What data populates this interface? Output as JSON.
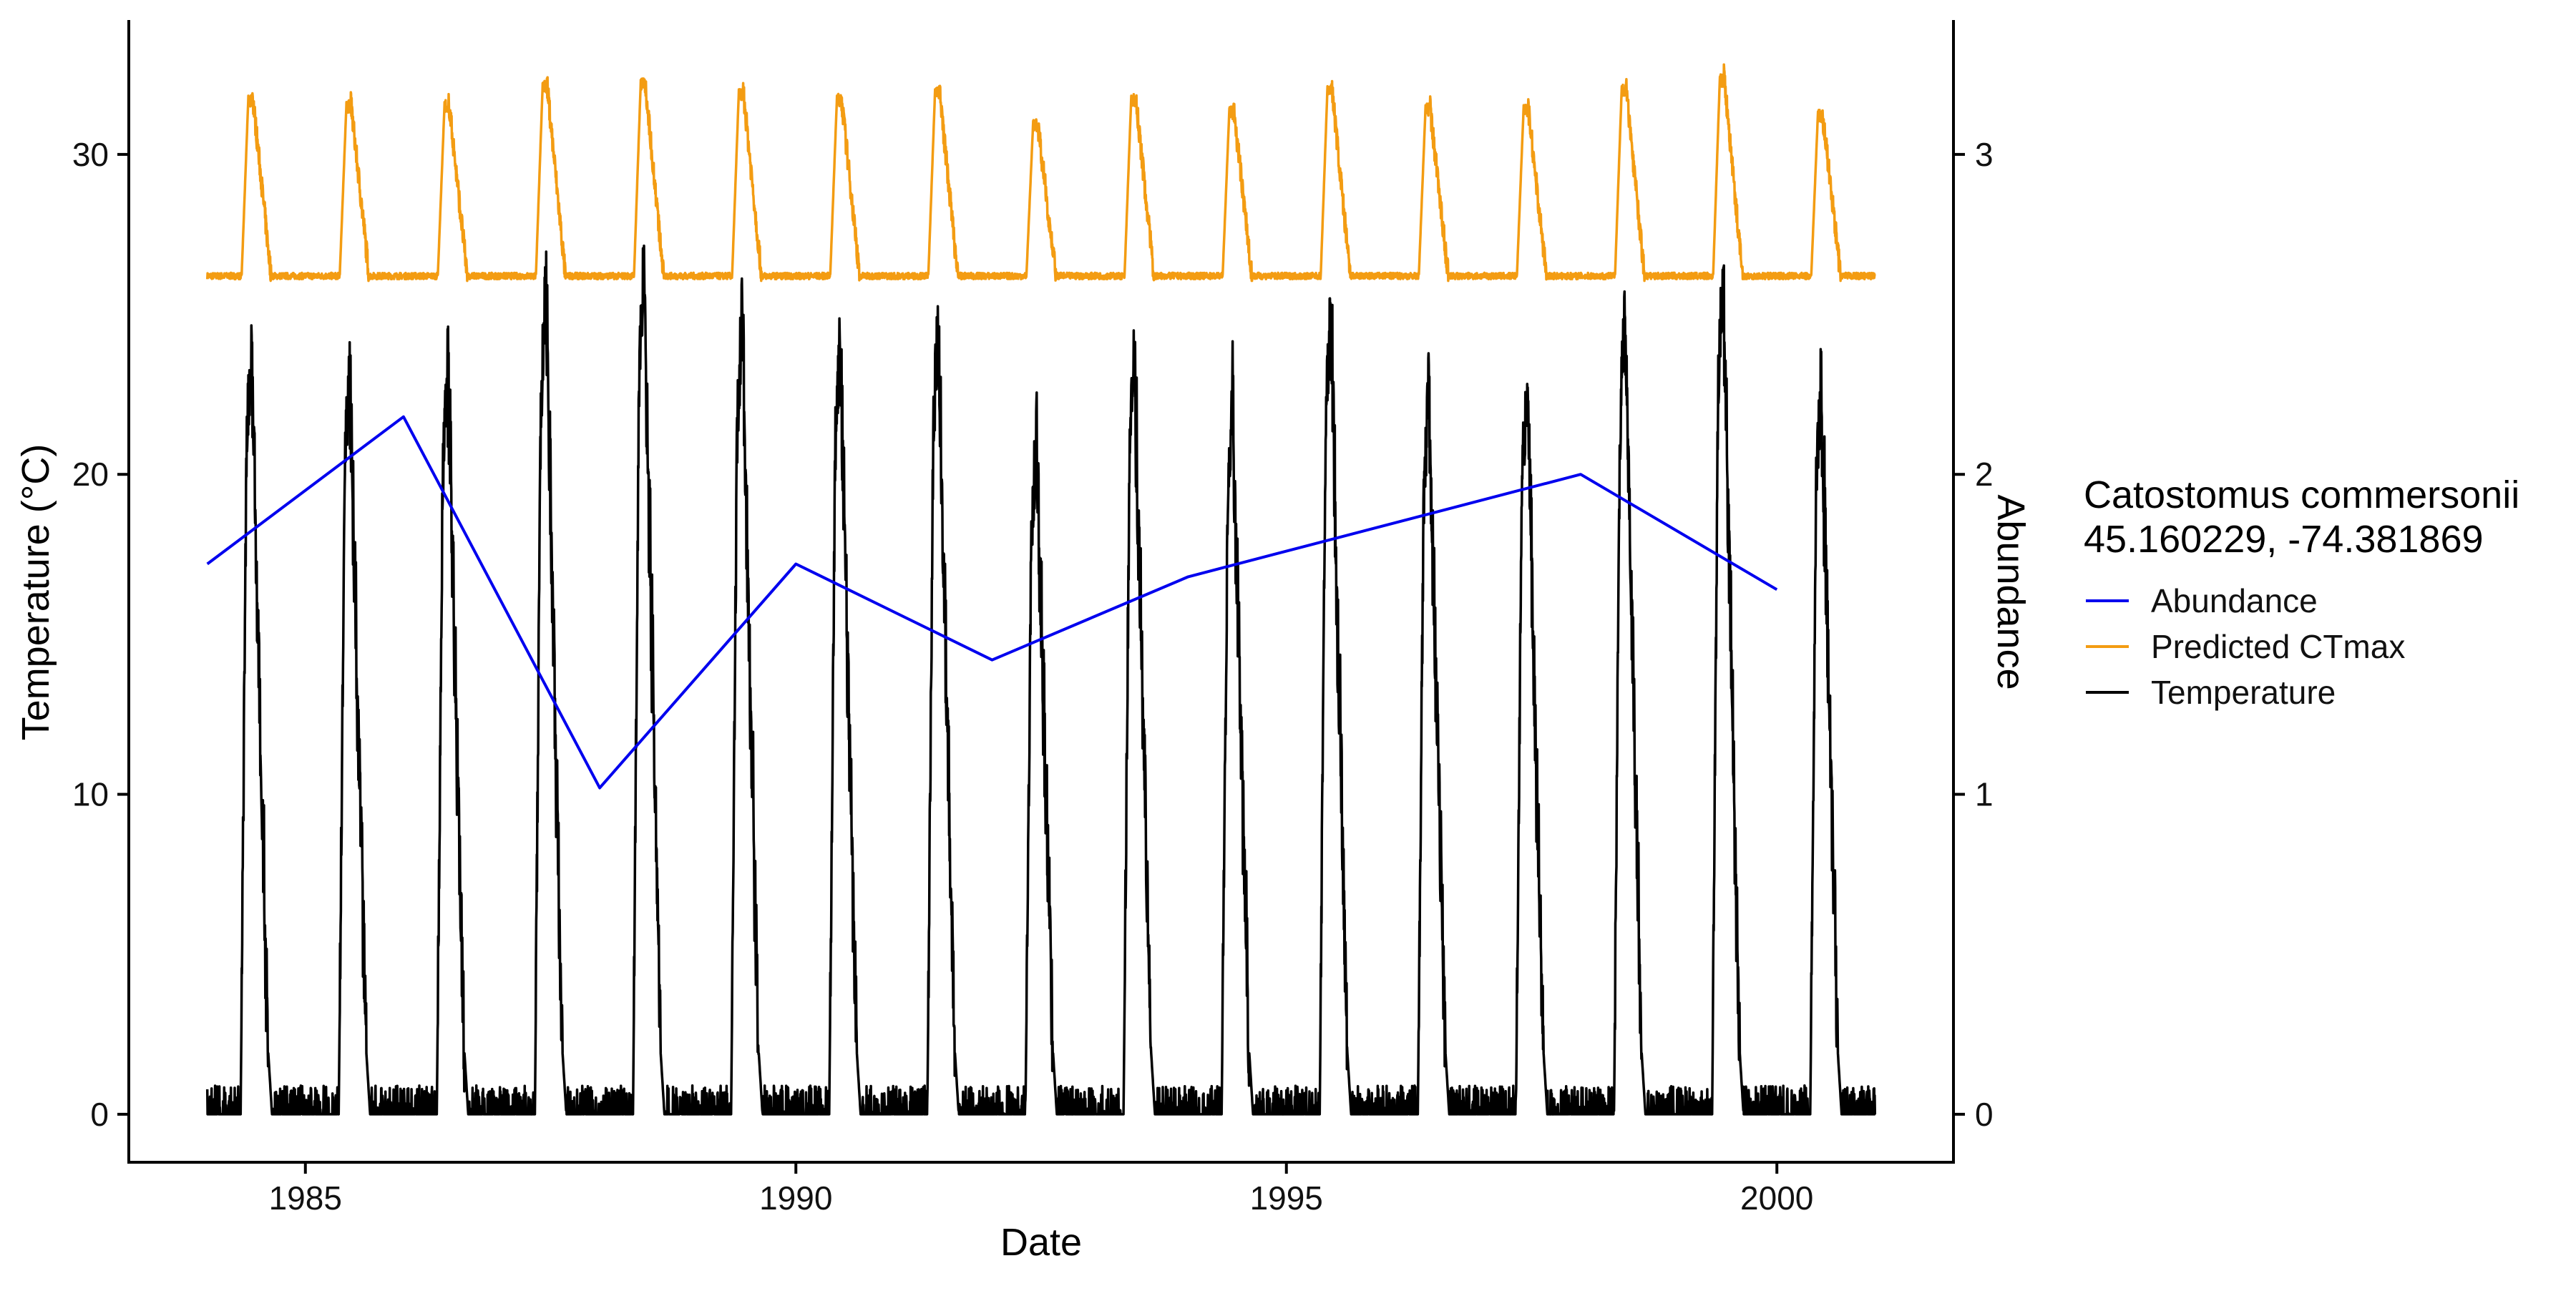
{
  "chart_data": {
    "type": "line",
    "title": "",
    "xlabel": "Date",
    "ylabel": "Temperature (°C)",
    "y2label": "Abundance",
    "xlim": [
      1983.2,
      2001.8
    ],
    "ylim": [
      -1.5,
      34.2
    ],
    "y2lim": [
      -0.15,
      3.42
    ],
    "x_ticks": [
      1985,
      1990,
      1995,
      2000
    ],
    "y_ticks": [
      0,
      10,
      20,
      30
    ],
    "y2_ticks": [
      0,
      1,
      2,
      3
    ],
    "grid": false,
    "legend": {
      "position": "right",
      "title_line1": "Catostomus commersonii",
      "title_line2": "45.160229, -74.381869",
      "entries": [
        "Abundance",
        "Predicted CTmax",
        "Temperature"
      ]
    },
    "colors": {
      "abundance": "#0000ee",
      "ctmax": "#f39c12",
      "temperature": "#000000",
      "y2_axis_title": "#0000ee"
    },
    "series": [
      {
        "name": "Abundance",
        "axis": "right",
        "x": [
          1984,
          1986,
          1988,
          1990,
          1992,
          1994,
          1998,
          2000
        ],
        "values": [
          1.72,
          2.18,
          1.02,
          1.72,
          1.42,
          1.68,
          2.0,
          1.64
        ]
      },
      {
        "name": "Predicted CTmax",
        "axis": "left",
        "x_range": [
          1984.0,
          2001.0
        ],
        "baseline": 26.2,
        "seasonal_peaks": [
          31.9,
          31.7,
          31.7,
          32.3,
          32.4,
          32.1,
          31.9,
          32.1,
          31.1,
          31.9,
          31.5,
          32.2,
          31.6,
          31.6,
          32.2,
          32.5,
          31.4
        ]
      },
      {
        "name": "Temperature",
        "axis": "left",
        "x_range": [
          1984.0,
          2001.0
        ],
        "baseline": 0.5,
        "seasonal_peaks": [
          24.3,
          23.4,
          23.6,
          26.0,
          26.7,
          25.0,
          24.4,
          25.0,
          21.2,
          24.0,
          22.2,
          25.3,
          22.9,
          23.0,
          25.2,
          26.6,
          23.1
        ]
      }
    ]
  }
}
